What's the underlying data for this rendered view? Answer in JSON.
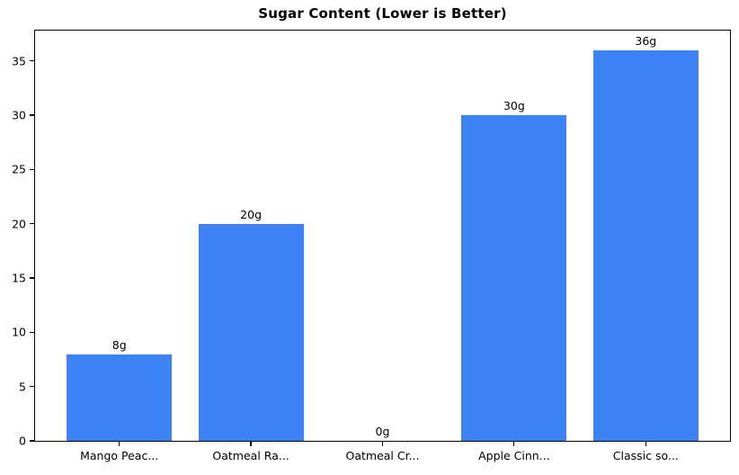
{
  "chart_data": {
    "type": "bar",
    "title": "Sugar Content (Lower is Better)",
    "categories": [
      "Mango Peac...",
      "Oatmeal Ra...",
      "Oatmeal Cr...",
      "Apple Cinn...",
      "Classic so..."
    ],
    "values": [
      8,
      20,
      0,
      30,
      36
    ],
    "value_labels": [
      "8g",
      "20g",
      "0g",
      "30g",
      "36g"
    ],
    "yticks": [
      0,
      5,
      10,
      15,
      20,
      25,
      30,
      35
    ],
    "ylim": [
      0,
      37.8
    ],
    "xlim": [
      -0.64,
      4.64
    ],
    "bar_width_units": 0.8,
    "xlabel": "",
    "ylabel": "",
    "bar_color": "#3d82f4",
    "axis_color": "#000000",
    "text_color": "#000000",
    "background_color": "#ffffff",
    "grid": "off",
    "legend": "none"
  }
}
